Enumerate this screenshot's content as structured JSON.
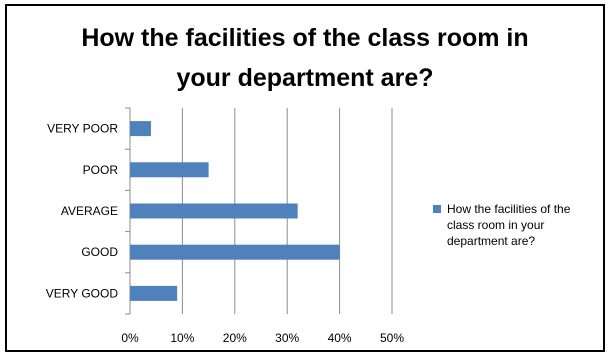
{
  "chart_data": {
    "type": "bar",
    "orientation": "horizontal",
    "title_lines": [
      "How the facilities of the class room in",
      "your department are?"
    ],
    "categories": [
      "VERY POOR",
      "POOR",
      "AVERAGE",
      "GOOD",
      "VERY GOOD"
    ],
    "series": [
      {
        "name_lines": [
          "How the facilities of the",
          "class room in your",
          "department are?"
        ],
        "values": [
          4,
          15,
          32,
          40,
          9
        ],
        "color": "#4f81bd"
      }
    ],
    "xlim": [
      0,
      50
    ],
    "xticks": [
      0,
      10,
      20,
      30,
      40,
      50
    ],
    "xtick_labels": [
      "0%",
      "10%",
      "20%",
      "30%",
      "40%",
      "50%"
    ],
    "grid": true,
    "legend_position": "right"
  }
}
